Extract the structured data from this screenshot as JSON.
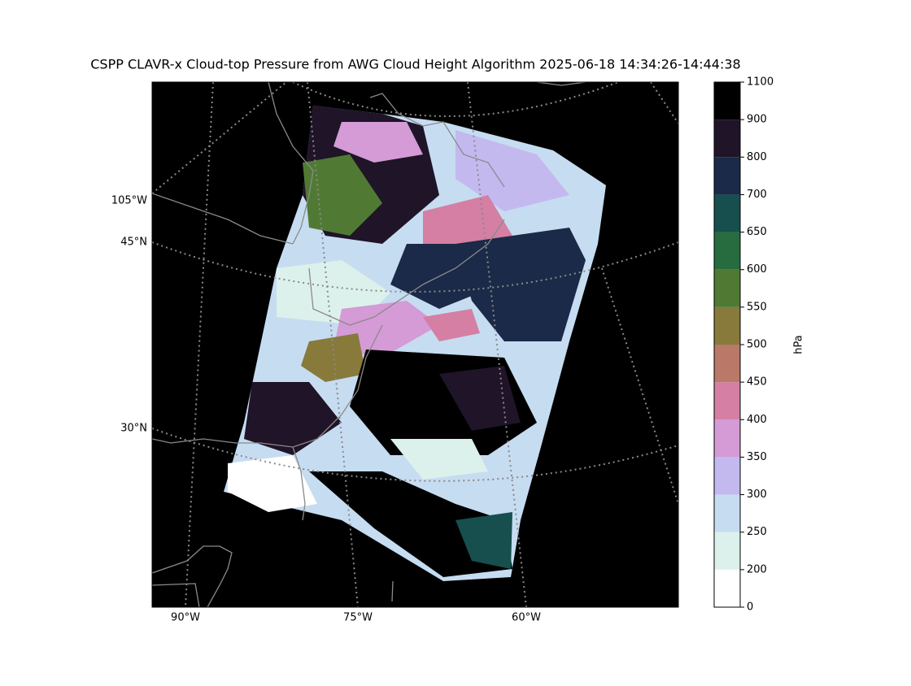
{
  "title": "CSPP CLAVR-x Cloud-top Pressure from AWG Cloud Height Algorithm 2025-06-18 14:34:26-14:44:38",
  "map": {
    "bottom_labels": [
      "90°W",
      "75°W",
      "60°W"
    ],
    "left_labels": [
      "105°W",
      "45°N",
      "30°N"
    ]
  },
  "colorbar": {
    "label": "hPa",
    "boundaries": [
      0,
      200,
      250,
      300,
      350,
      400,
      450,
      500,
      550,
      600,
      650,
      700,
      800,
      900,
      1100
    ],
    "colors": [
      "#ffffff",
      "#ddf1ec",
      "#c6dcf1",
      "#c4b9ef",
      "#d49bd6",
      "#d47fa3",
      "#b97868",
      "#887a3a",
      "#507a33",
      "#266c3e",
      "#174f4e",
      "#1a2a48",
      "#1f1428",
      "#000000"
    ]
  }
}
